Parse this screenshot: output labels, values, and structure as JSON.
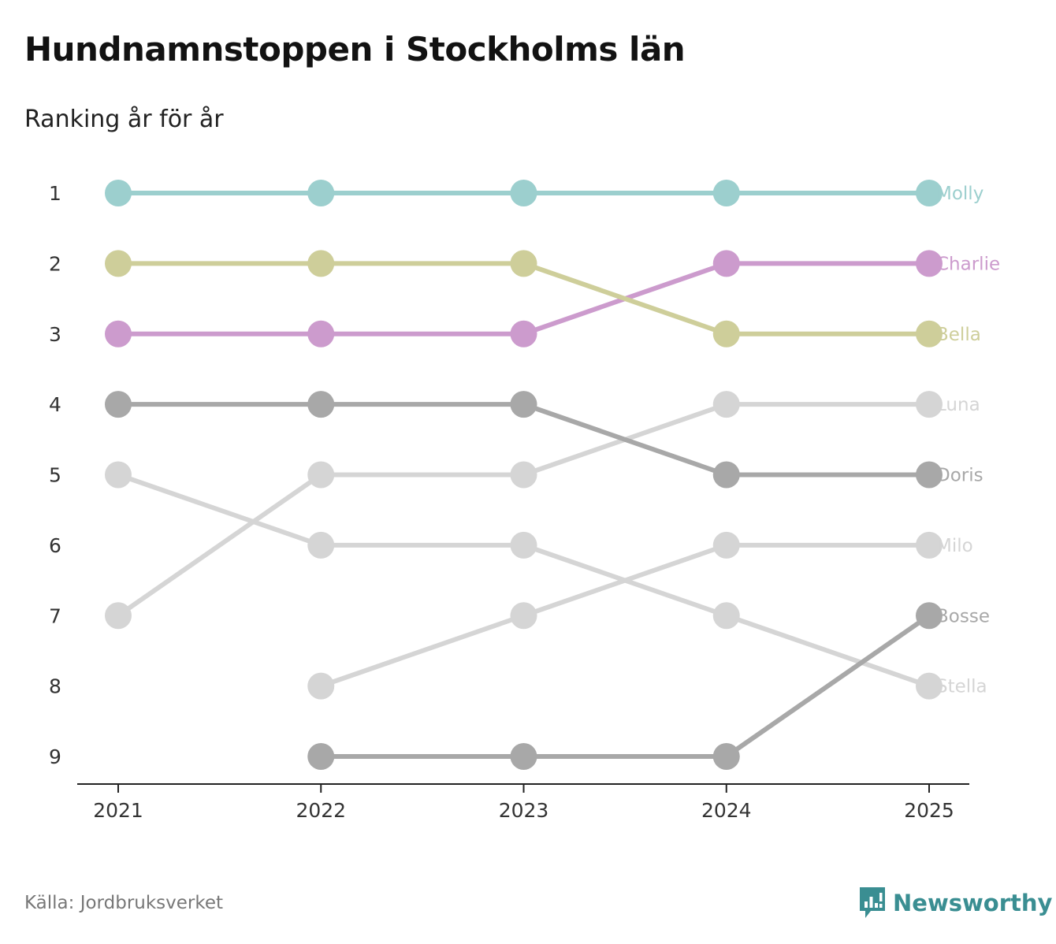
{
  "title": "Hundnamnstoppen i Stockholms län",
  "subtitle": "Ranking år för år",
  "source": "Källa: Jordbruksverket",
  "brand": {
    "name": "Newsworthy",
    "icon": "newsworthy-logo-icon",
    "color": "#3a8e92"
  },
  "chart_data": {
    "type": "line",
    "title": "Hundnamnstoppen i Stockholms län",
    "subtitle": "Ranking år för år",
    "x": [
      "2021",
      "2022",
      "2023",
      "2024",
      "2025"
    ],
    "y_ticks": [
      "1",
      "2",
      "3",
      "4",
      "5",
      "6",
      "7",
      "8",
      "9"
    ],
    "ylim": [
      1,
      9
    ],
    "y_reversed": true,
    "xlabel": "",
    "ylabel": "",
    "grid": false,
    "legend": "direct labels at right",
    "series": [
      {
        "name": "Molly",
        "color": "#9ccfce",
        "values": [
          1,
          1,
          1,
          1,
          1
        ]
      },
      {
        "name": "Charlie",
        "color": "#cc9bcd",
        "values": [
          3,
          3,
          3,
          2,
          2
        ]
      },
      {
        "name": "Bella",
        "color": "#cece9a",
        "values": [
          2,
          2,
          2,
          3,
          3
        ]
      },
      {
        "name": "Luna",
        "color": "#d5d5d5",
        "values": [
          7,
          5,
          5,
          4,
          4
        ]
      },
      {
        "name": "Doris",
        "color": "#a8a8a8",
        "values": [
          4,
          4,
          4,
          5,
          5
        ]
      },
      {
        "name": "Milo",
        "color": "#d5d5d5",
        "values": [
          null,
          8,
          7,
          6,
          6
        ]
      },
      {
        "name": "Bosse",
        "color": "#a8a8a8",
        "values": [
          null,
          9,
          9,
          9,
          7
        ]
      },
      {
        "name": "Stella",
        "color": "#d5d5d5",
        "values": [
          5,
          6,
          6,
          7,
          8
        ]
      }
    ]
  }
}
